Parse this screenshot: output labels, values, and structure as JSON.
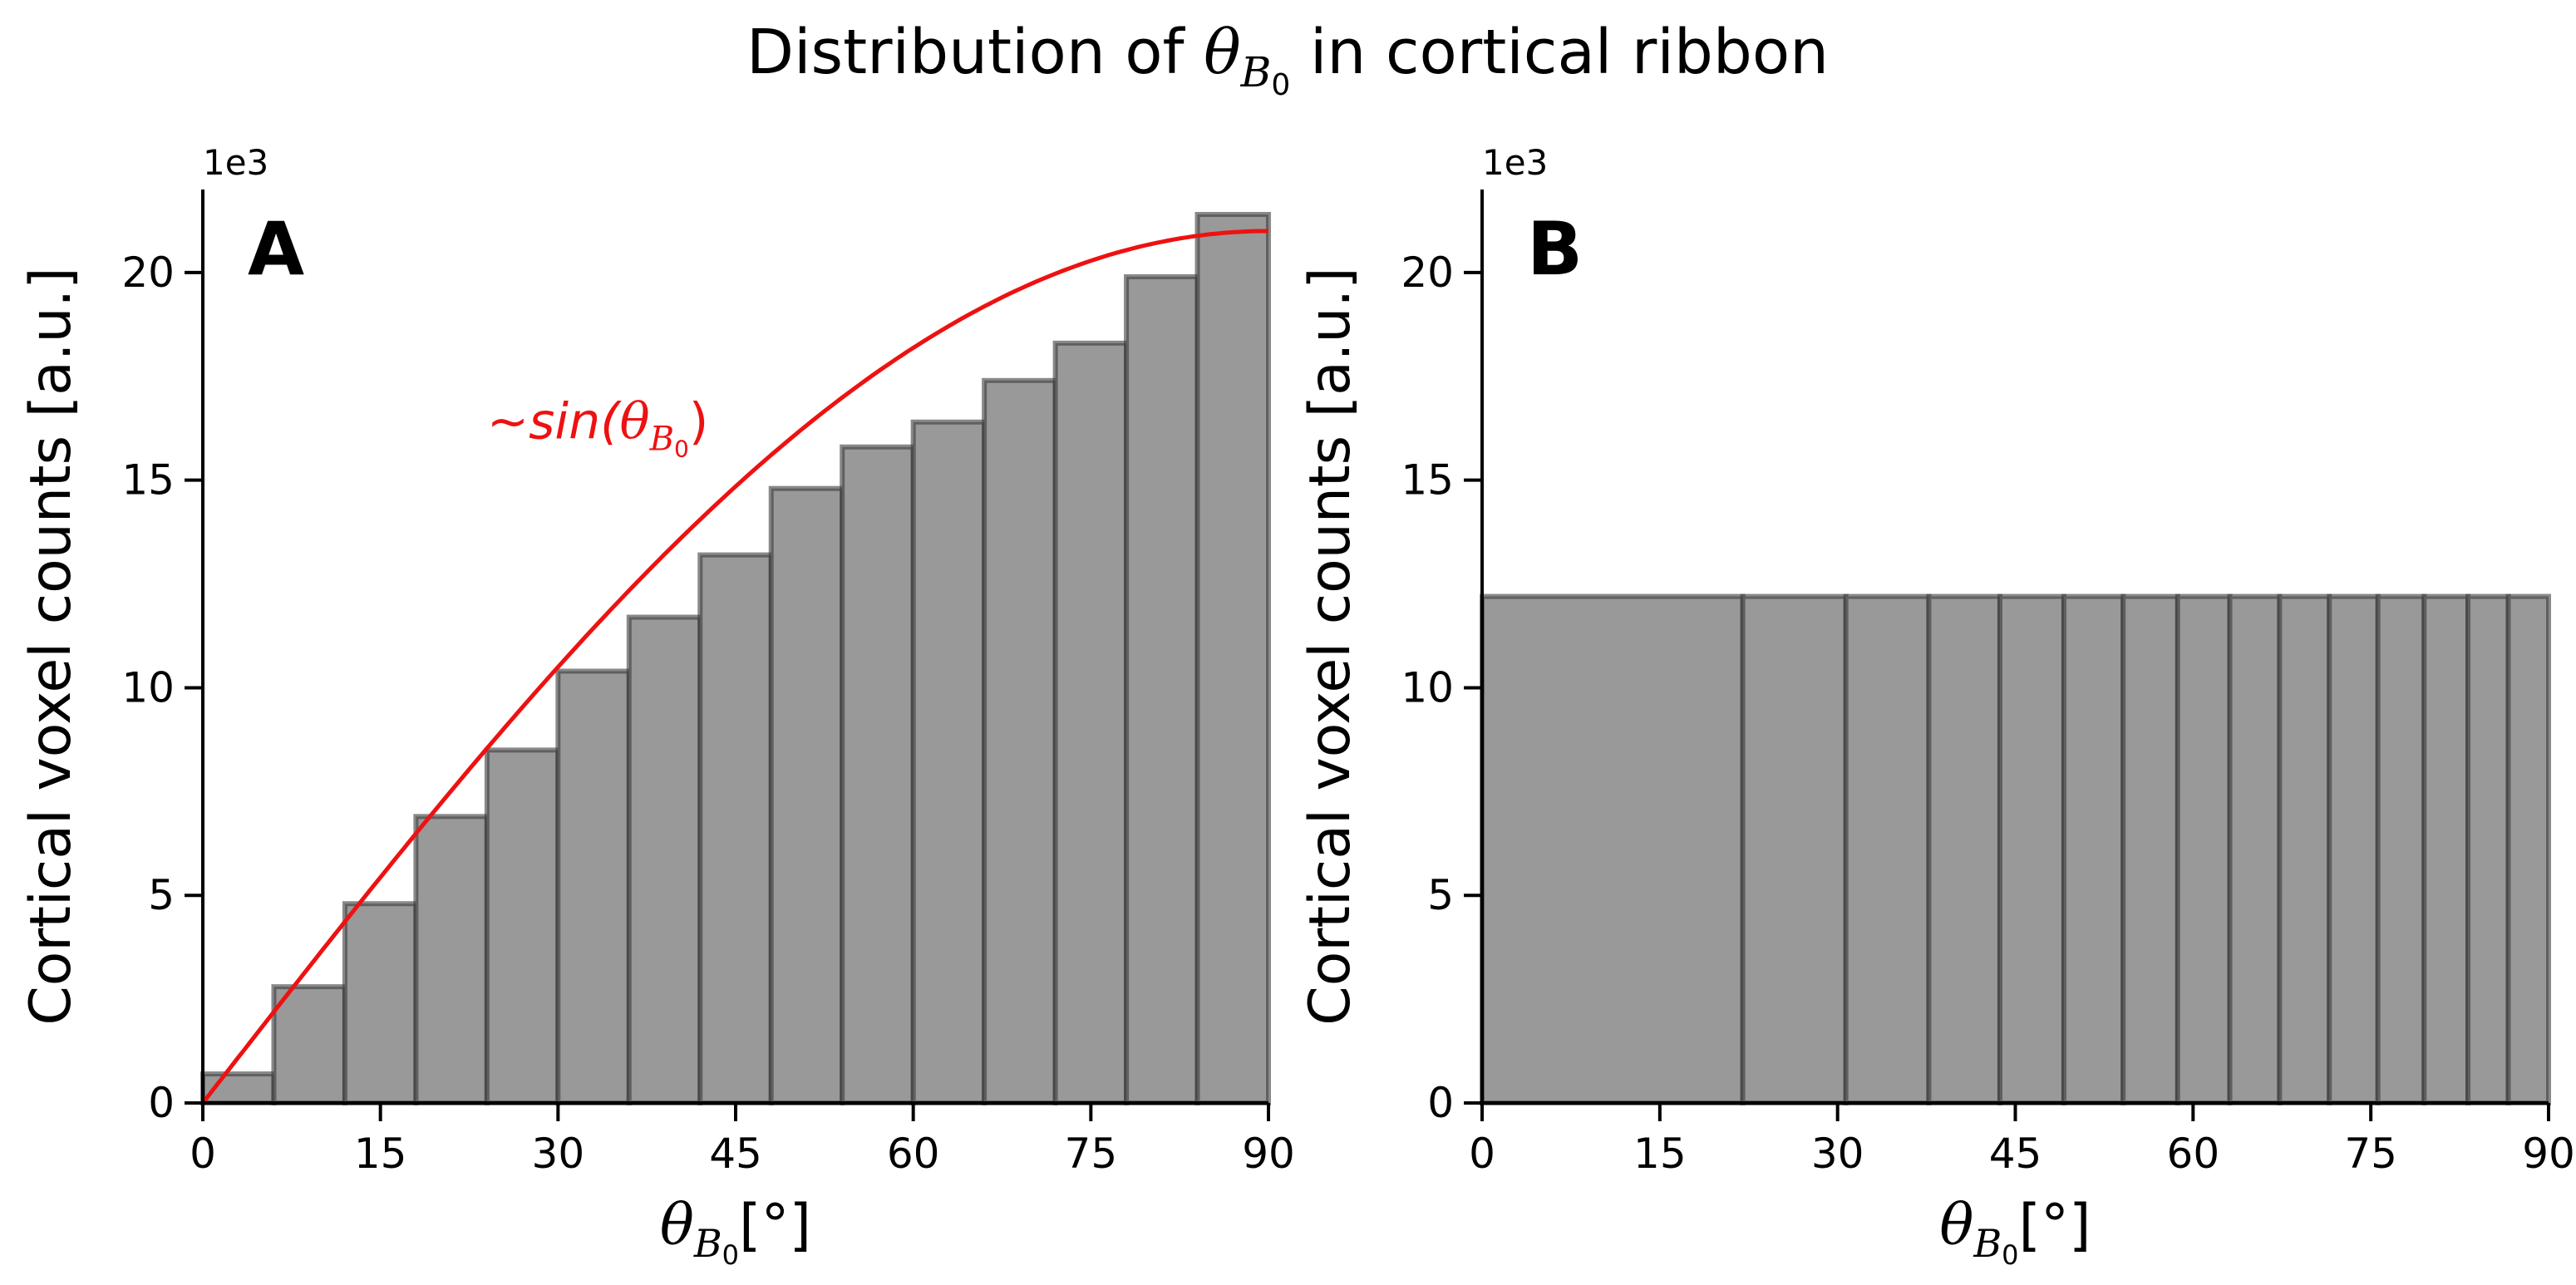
{
  "figure": {
    "title_prefix": "Distribution of ",
    "title_sym": "θ",
    "title_sub": "B",
    "title_subsub": "0",
    "title_suffix": " in cortical ribbon"
  },
  "colors": {
    "bar_fill": "#999999",
    "bar_edge": "#3a3a3a",
    "curve": "#ee1111",
    "axis": "#000000"
  },
  "chart_data": [
    {
      "type": "bar",
      "panel_label": "A",
      "xlabel_sym": "θ",
      "xlabel_sub": "B",
      "xlabel_subsub": "0",
      "xlabel_unit": "[°]",
      "ylabel": "Cortical voxel counts [a.u.]",
      "y_multiplier": "1e3",
      "xlim": [
        0,
        90
      ],
      "ylim": [
        0,
        22
      ],
      "xticks": [
        0,
        15,
        30,
        45,
        60,
        75,
        90
      ],
      "yticks": [
        0,
        5,
        10,
        15,
        20
      ],
      "bin_edges": [
        0,
        6,
        12,
        18,
        24,
        30,
        36,
        42,
        48,
        54,
        60,
        66,
        72,
        78,
        84,
        90
      ],
      "values": [
        0.7,
        2.8,
        4.8,
        6.9,
        8.5,
        10.4,
        11.7,
        13.2,
        14.8,
        15.8,
        16.4,
        17.4,
        18.3,
        19.9,
        21.4
      ],
      "curve": {
        "type": "line",
        "function": "sin",
        "amplitude": 21.0,
        "label_prefix": "~",
        "label_fn": "sin(",
        "label_sym": "θ",
        "label_sub": "B",
        "label_subsub": "0",
        "label_close": ")",
        "label_at": [
          24,
          16
        ]
      }
    },
    {
      "type": "bar",
      "panel_label": "B",
      "xlabel_sym": "θ",
      "xlabel_sub": "B",
      "xlabel_subsub": "0",
      "xlabel_unit": "[°]",
      "ylabel": "Cortical voxel counts [a.u.]",
      "y_multiplier": "1e3",
      "xlim": [
        0,
        90
      ],
      "ylim": [
        0,
        22
      ],
      "xticks": [
        0,
        15,
        30,
        45,
        60,
        75,
        90
      ],
      "yticks": [
        0,
        5,
        10,
        15,
        20
      ],
      "bin_edges": [
        0,
        22,
        30.7,
        37.7,
        43.7,
        49.1,
        54.1,
        58.7,
        63.1,
        67.3,
        71.5,
        75.6,
        79.5,
        83.2,
        86.6,
        90
      ],
      "values": [
        12.2,
        12.2,
        12.2,
        12.2,
        12.2,
        12.2,
        12.2,
        12.2,
        12.2,
        12.2,
        12.2,
        12.2,
        12.2,
        12.2,
        12.2
      ]
    }
  ]
}
